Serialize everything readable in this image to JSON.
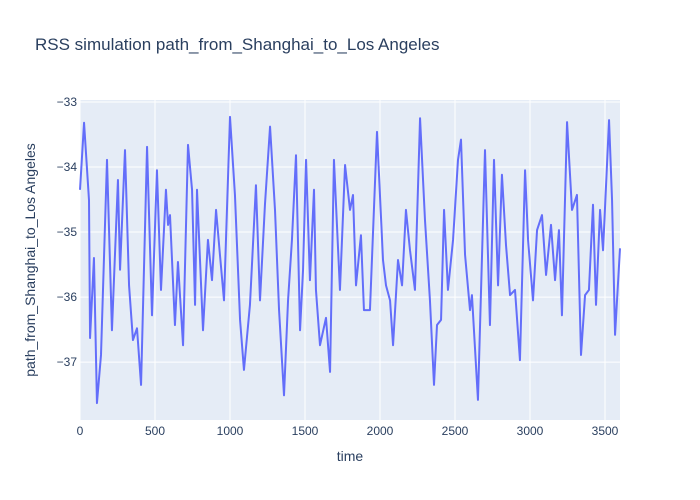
{
  "chart_data": {
    "type": "line",
    "title": "RSS simulation path_from_Shanghai_to_Los Angeles",
    "x_label": "time",
    "y_label": "path_from_Shanghai_to_Los Angeles",
    "xlim": [
      0,
      3600
    ],
    "ylim": [
      -37.89,
      -32.97
    ],
    "xticks": [
      0,
      500,
      1000,
      1500,
      2000,
      2500,
      3000,
      3500
    ],
    "yticks": [
      {
        "value": -33,
        "label": "−33"
      },
      {
        "value": -34,
        "label": "−34"
      },
      {
        "value": -35,
        "label": "−35"
      },
      {
        "value": -36,
        "label": "−36"
      },
      {
        "value": -37,
        "label": "−37"
      }
    ],
    "grid": true,
    "x": [
      0,
      27,
      60,
      67,
      93,
      113,
      140,
      180,
      213,
      253,
      267,
      300,
      327,
      353,
      380,
      407,
      447,
      480,
      513,
      540,
      573,
      587,
      600,
      633,
      653,
      687,
      720,
      747,
      767,
      780,
      820,
      853,
      880,
      907,
      933,
      960,
      1000,
      1033,
      1067,
      1093,
      1133,
      1173,
      1200,
      1233,
      1267,
      1300,
      1327,
      1360,
      1387,
      1413,
      1440,
      1467,
      1487,
      1507,
      1533,
      1560,
      1573,
      1600,
      1640,
      1667,
      1693,
      1733,
      1767,
      1800,
      1820,
      1840,
      1873,
      1893,
      1933,
      1980,
      2020,
      2040,
      2067,
      2087,
      2120,
      2147,
      2173,
      2200,
      2233,
      2267,
      2300,
      2333,
      2360,
      2380,
      2407,
      2427,
      2453,
      2487,
      2520,
      2540,
      2567,
      2600,
      2613,
      2653,
      2700,
      2733,
      2760,
      2787,
      2813,
      2840,
      2867,
      2900,
      2933,
      2967,
      2987,
      3020,
      3047,
      3080,
      3107,
      3140,
      3167,
      3193,
      3213,
      3247,
      3280,
      3313,
      3340,
      3367,
      3393,
      3420,
      3440,
      3467,
      3487,
      3527,
      3547,
      3567,
      3600
    ],
    "series": [
      {
        "color": "#636efa",
        "values": [
          -34.35,
          -33.32,
          -34.51,
          -36.63,
          -35.4,
          -37.63,
          -36.89,
          -33.89,
          -36.51,
          -34.2,
          -35.58,
          -33.74,
          -35.82,
          -36.66,
          -36.48,
          -37.35,
          -33.69,
          -36.28,
          -34.05,
          -35.89,
          -34.35,
          -34.89,
          -34.74,
          -36.43,
          -35.46,
          -36.74,
          -33.66,
          -34.35,
          -36.12,
          -34.35,
          -36.51,
          -35.12,
          -35.74,
          -34.66,
          -35.35,
          -36.05,
          -33.23,
          -34.43,
          -36.35,
          -37.12,
          -36.12,
          -34.28,
          -36.05,
          -34.58,
          -33.38,
          -34.66,
          -36.2,
          -37.51,
          -36.05,
          -35.12,
          -33.82,
          -36.51,
          -35.58,
          -33.89,
          -35.74,
          -34.35,
          -35.89,
          -36.74,
          -36.32,
          -37.15,
          -33.89,
          -35.89,
          -33.97,
          -34.66,
          -34.43,
          -35.82,
          -35.05,
          -36.2,
          -36.2,
          -33.46,
          -35.43,
          -35.82,
          -36.05,
          -36.74,
          -35.43,
          -35.82,
          -34.66,
          -35.28,
          -35.89,
          -33.25,
          -34.82,
          -36.05,
          -37.35,
          -36.43,
          -36.35,
          -34.66,
          -35.89,
          -35.12,
          -33.89,
          -33.58,
          -35.35,
          -36.2,
          -35.97,
          -37.58,
          -33.74,
          -36.43,
          -33.89,
          -35.82,
          -34.12,
          -35.2,
          -35.97,
          -35.89,
          -36.97,
          -34.05,
          -35.12,
          -36.05,
          -34.97,
          -34.74,
          -35.66,
          -34.89,
          -35.74,
          -34.97,
          -36.28,
          -33.31,
          -34.66,
          -34.43,
          -36.89,
          -35.97,
          -35.89,
          -34.58,
          -36.12,
          -34.66,
          -35.28,
          -33.28,
          -34.51,
          -36.58,
          -35.25
        ]
      }
    ]
  }
}
